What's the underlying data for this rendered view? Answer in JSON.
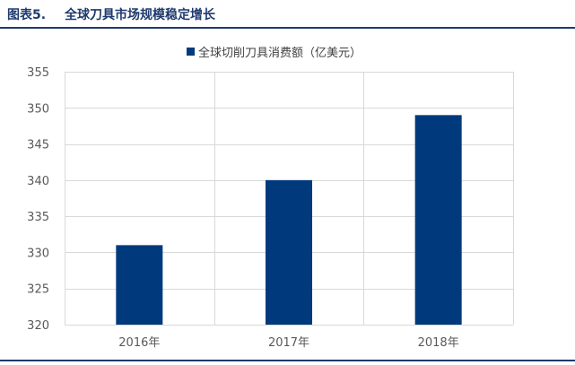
{
  "figure": {
    "number": "图表5.",
    "caption": "全球刀具市场规模稳定增长"
  },
  "chart_data": {
    "type": "bar",
    "title": "",
    "categories": [
      "2016年",
      "2017年",
      "2018年"
    ],
    "series": [
      {
        "name": "全球切削刀具消费额（亿美元）",
        "values": [
          331,
          340,
          349
        ]
      }
    ],
    "ylim": [
      320,
      355
    ],
    "yticks": [
      320,
      325,
      330,
      335,
      340,
      345,
      350,
      355
    ],
    "xlabel": "",
    "ylabel": "",
    "grid": {
      "horizontal": true,
      "vertical": true
    },
    "legend_position": "top-center",
    "colors": {
      "bar": "#003a7d",
      "grid": "#d9d9d9",
      "axis_text": "#595959",
      "title": "#1f3a6e"
    }
  }
}
